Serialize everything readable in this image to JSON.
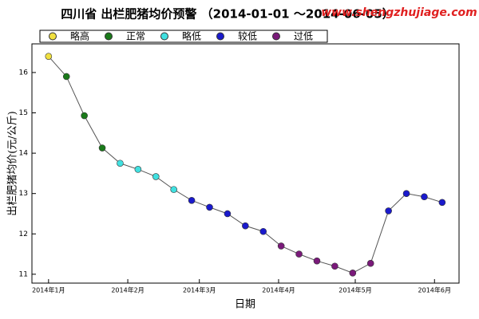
{
  "chart_data": {
    "type": "line",
    "title": "四川省 出栏肥猪均价预警 （2014-01-01 ～2014-06-05）",
    "watermark": "www.shengzhujiage.com",
    "x_label": "日期",
    "y_label": "出栏肥猪均价(元/公斤)",
    "legend": [
      {
        "name": "略高",
        "color": "#f0e040"
      },
      {
        "name": "正常",
        "color": "#1a7a1a"
      },
      {
        "name": "略低",
        "color": "#40e0e0"
      },
      {
        "name": "较低",
        "color": "#1a1acc"
      },
      {
        "name": "过低",
        "color": "#7a1a7a"
      }
    ],
    "x": [
      0,
      7,
      14,
      21,
      28,
      35,
      42,
      49,
      56,
      63,
      70,
      77,
      84,
      91,
      98,
      105,
      112,
      119,
      126,
      133,
      140,
      147,
      154
    ],
    "values": [
      16.4,
      15.9,
      14.93,
      14.13,
      13.75,
      13.6,
      13.42,
      13.1,
      12.83,
      12.66,
      12.5,
      12.2,
      12.06,
      11.7,
      11.5,
      11.33,
      11.2,
      11.03,
      11.27,
      12.57,
      13.0,
      12.92,
      12.78
    ],
    "point_colors": [
      "#f0e040",
      "#1a7a1a",
      "#1a7a1a",
      "#1a7a1a",
      "#40e0e0",
      "#40e0e0",
      "#40e0e0",
      "#40e0e0",
      "#1a1acc",
      "#1a1acc",
      "#1a1acc",
      "#1a1acc",
      "#1a1acc",
      "#7a1a7a",
      "#7a1a7a",
      "#7a1a7a",
      "#7a1a7a",
      "#7a1a7a",
      "#7a1a7a",
      "#1a1acc",
      "#1a1acc",
      "#1a1acc",
      "#1a1acc"
    ],
    "line_color": "#555555",
    "xlim": [
      -6.5,
      160.6
    ],
    "xticks": [
      {
        "value": 0,
        "label": "2014年1月"
      },
      {
        "value": 31,
        "label": "2014年2月"
      },
      {
        "value": 59,
        "label": "2014年3月"
      },
      {
        "value": 90,
        "label": "2014年4月"
      },
      {
        "value": 120,
        "label": "2014年5月"
      },
      {
        "value": 151,
        "label": "2014年6月"
      }
    ],
    "ylim": [
      10.78,
      16.71
    ],
    "yticks": [
      11,
      12,
      13,
      14,
      15,
      16
    ]
  }
}
